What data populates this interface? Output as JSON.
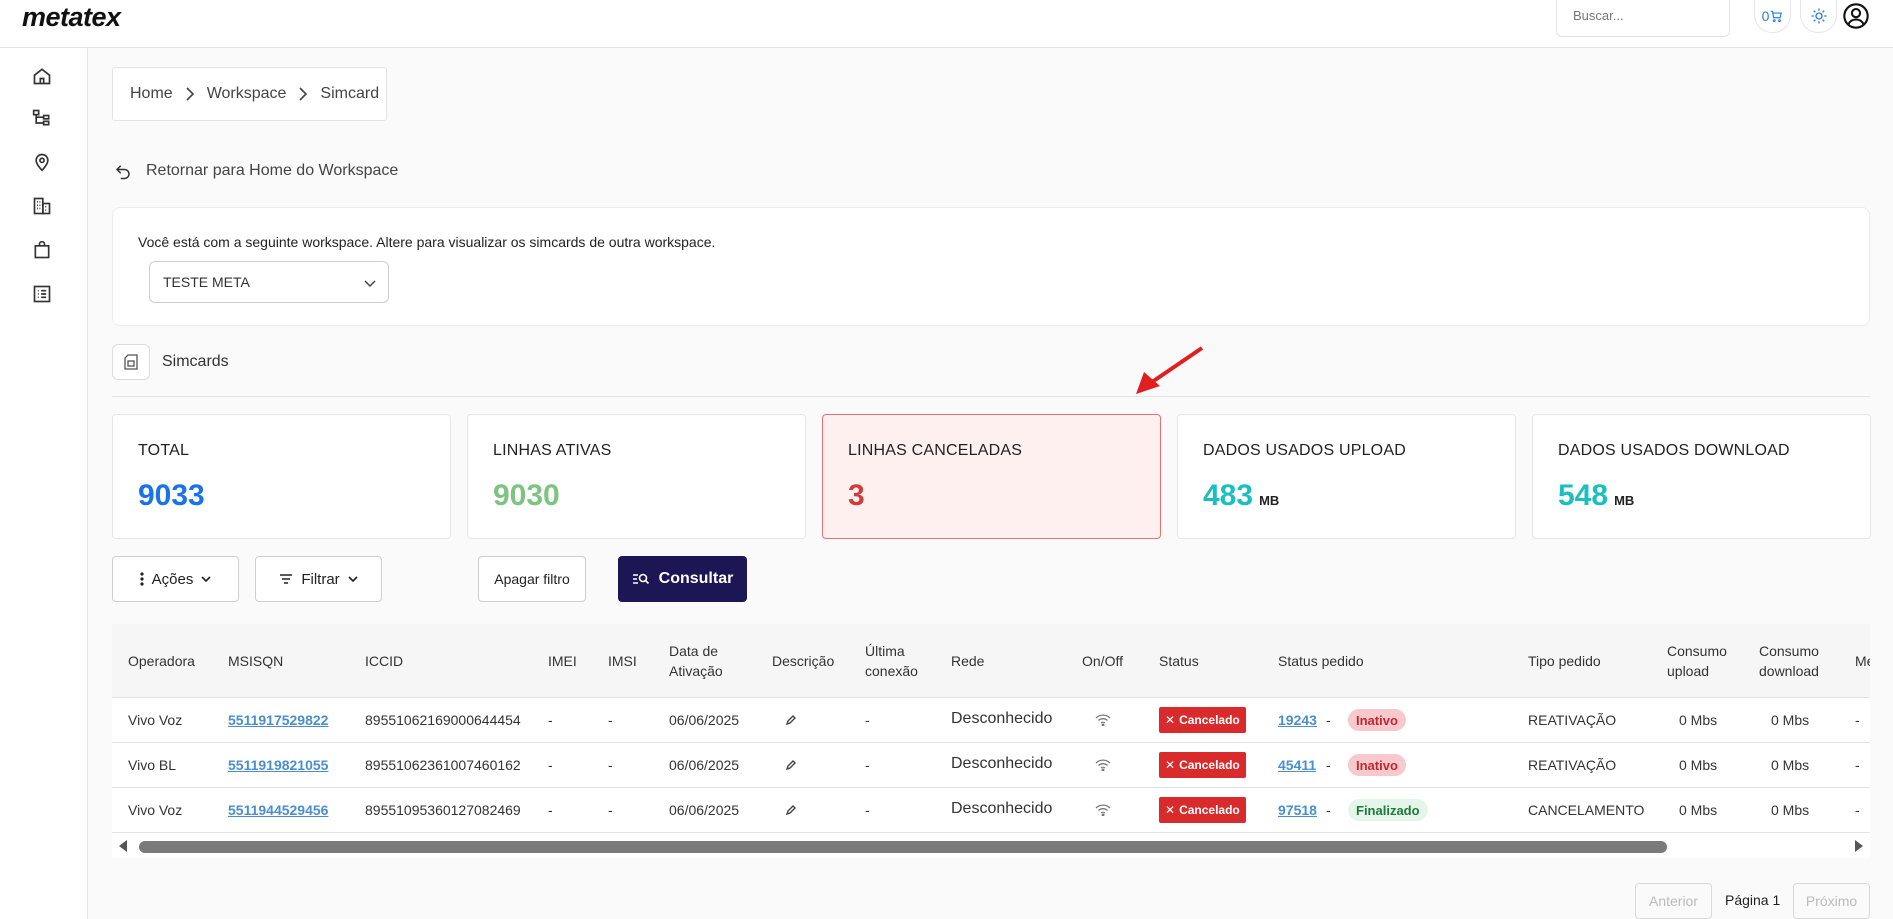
{
  "app": {
    "logo": "metatex"
  },
  "header": {
    "search_placeholder": "Buscar...",
    "cart_count": "0",
    "icons": [
      "cart-icon",
      "sun-icon",
      "user-circle-icon"
    ]
  },
  "sidebar": {
    "items": [
      {
        "icon": "home-icon"
      },
      {
        "icon": "hierarchy-icon"
      },
      {
        "icon": "location-pin-icon"
      },
      {
        "icon": "buildings-icon"
      },
      {
        "icon": "shopping-bag-icon"
      },
      {
        "icon": "list-icon"
      }
    ]
  },
  "breadcrumb": {
    "items": [
      "Home",
      "Workspace",
      "Simcard"
    ]
  },
  "back_link": {
    "label": "Retornar para Home do Workspace"
  },
  "workspace": {
    "description": "Você está com a seguinte workspace. Altere para visualizar os simcards de outra workspace.",
    "selected": "TESTE META"
  },
  "section": {
    "title": "Simcards"
  },
  "stats": [
    {
      "label": "TOTAL",
      "value": "9033",
      "unit": "",
      "color": "#1a73e8"
    },
    {
      "label": "LINHAS ATIVAS",
      "value": "9030",
      "unit": "",
      "color": "#7cc47f"
    },
    {
      "label": "LINHAS CANCELADAS",
      "value": "3",
      "unit": "",
      "color": "#d23b3b"
    },
    {
      "label": "DADOS USADOS UPLOAD",
      "value": "483",
      "unit": "MB",
      "color": "#1bbfbf"
    },
    {
      "label": "DADOS USADOS DOWNLOAD",
      "value": "548",
      "unit": "MB",
      "color": "#1bbfbf"
    }
  ],
  "toolbar": {
    "acoes_label": "Ações",
    "filtrar_label": "Filtrar",
    "apagar_label": "Apagar filtro",
    "consultar_label": "Consultar"
  },
  "table": {
    "headers": {
      "operadora": "Operadora",
      "msisqn": "MSISQN",
      "iccid": "ICCID",
      "imei": "IMEI",
      "imsi": "IMSI",
      "data_ativacao_1": "Data de",
      "data_ativacao_2": "Ativação",
      "descricao": "Descrição",
      "ultima_1": "Última",
      "ultima_2": "conexão",
      "rede": "Rede",
      "onoff": "On/Off",
      "status": "Status",
      "status_pedido": "Status pedido",
      "tipo_pedido": "Tipo pedido",
      "upload_1": "Consumo",
      "upload_2": "upload",
      "download_1": "Consumo",
      "download_2": "download",
      "more": "Me"
    },
    "rows": [
      {
        "operadora": "Vivo Voz",
        "msisqn": "5511917529822",
        "iccid": "89551062169000644454",
        "imei": "-",
        "imsi": "-",
        "data": "06/06/2025",
        "ultima": "-",
        "rede": "Desconhecido",
        "status": "Cancelado",
        "pedido": "19243",
        "dash": "-",
        "pedido_status": "Inativo",
        "tipo": "REATIVAÇÃO",
        "upload": "0 Mbs",
        "download": "0 Mbs",
        "more": "-"
      },
      {
        "operadora": "Vivo BL",
        "msisqn": "5511919821055",
        "iccid": "89551062361007460162",
        "imei": "-",
        "imsi": "-",
        "data": "06/06/2025",
        "ultima": "-",
        "rede": "Desconhecido",
        "status": "Cancelado",
        "pedido": "45411",
        "dash": "-",
        "pedido_status": "Inativo",
        "tipo": "REATIVAÇÃO",
        "upload": "0 Mbs",
        "download": "0 Mbs",
        "more": "-"
      },
      {
        "operadora": "Vivo Voz",
        "msisqn": "5511944529456",
        "iccid": "89551095360127082469",
        "imei": "-",
        "imsi": "-",
        "data": "06/06/2025",
        "ultima": "-",
        "rede": "Desconhecido",
        "status": "Cancelado",
        "pedido": "97518",
        "dash": "-",
        "pedido_status": "Finalizado",
        "tipo": "CANCELAMENTO",
        "upload": "0 Mbs",
        "download": "0 Mbs",
        "more": "-"
      }
    ]
  },
  "pagination": {
    "prev_label": "Anterior",
    "page_label": "Página 1",
    "next_label": "Próximo"
  }
}
